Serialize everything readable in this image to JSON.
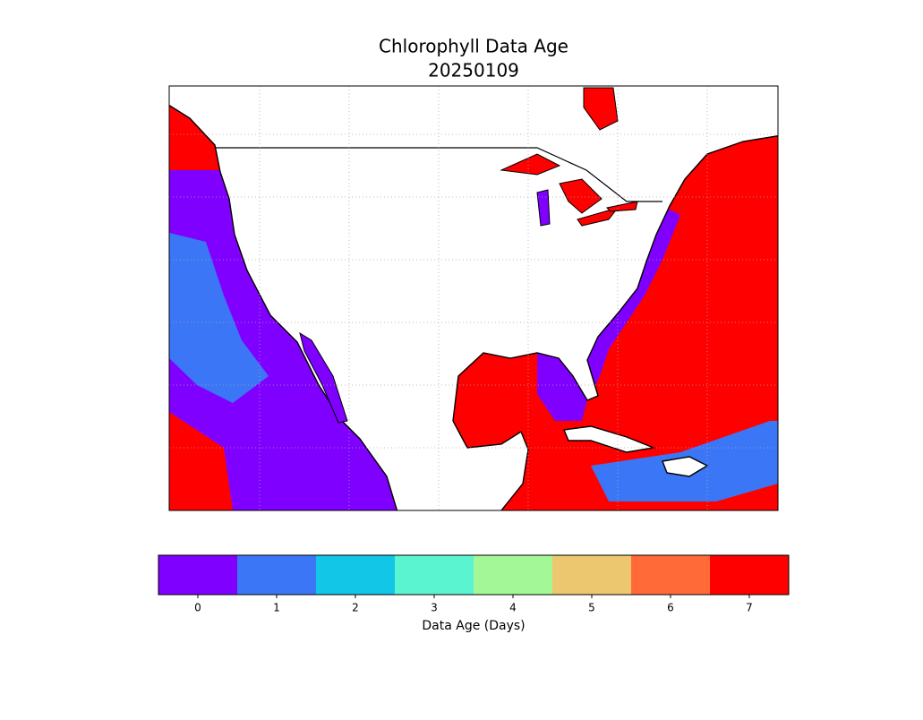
{
  "title": "Chlorophyll Data Age",
  "subtitle": "20250109",
  "colorbar": {
    "label": "Data Age (Days)",
    "lim": [
      -0.5,
      7.5
    ],
    "ticks": [
      0,
      1,
      2,
      3,
      4,
      5,
      6,
      7
    ],
    "colors": [
      "#7f00ff",
      "#3b76f6",
      "#11c6e6",
      "#5af5d0",
      "#a3f797",
      "#ecc770",
      "#ff6a38",
      "#ff0000"
    ]
  }
}
